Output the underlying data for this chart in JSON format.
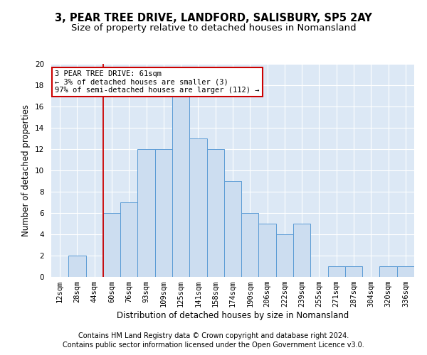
{
  "title1": "3, PEAR TREE DRIVE, LANDFORD, SALISBURY, SP5 2AY",
  "title2": "Size of property relative to detached houses in Nomansland",
  "xlabel": "Distribution of detached houses by size in Nomansland",
  "ylabel": "Number of detached properties",
  "categories": [
    "12sqm",
    "28sqm",
    "44sqm",
    "60sqm",
    "76sqm",
    "93sqm",
    "109sqm",
    "125sqm",
    "141sqm",
    "158sqm",
    "174sqm",
    "190sqm",
    "206sqm",
    "222sqm",
    "239sqm",
    "255sqm",
    "271sqm",
    "287sqm",
    "304sqm",
    "320sqm",
    "336sqm"
  ],
  "values": [
    0,
    2,
    0,
    6,
    7,
    12,
    12,
    17,
    13,
    12,
    9,
    6,
    5,
    4,
    5,
    0,
    1,
    1,
    0,
    1,
    1
  ],
  "bar_color": "#ccddf0",
  "bar_edge_color": "#5b9bd5",
  "annotation_text": "3 PEAR TREE DRIVE: 61sqm\n← 3% of detached houses are smaller (3)\n97% of semi-detached houses are larger (112) →",
  "annotation_box_color": "#ffffff",
  "annotation_box_edge_color": "#cc0000",
  "ylim": [
    0,
    20
  ],
  "yticks": [
    0,
    2,
    4,
    6,
    8,
    10,
    12,
    14,
    16,
    18,
    20
  ],
  "red_line_x": 2.5,
  "background_color": "#dce8f5",
  "grid_color": "#ffffff",
  "footer1": "Contains HM Land Registry data © Crown copyright and database right 2024.",
  "footer2": "Contains public sector information licensed under the Open Government Licence v3.0.",
  "title1_fontsize": 10.5,
  "title2_fontsize": 9.5,
  "xlabel_fontsize": 8.5,
  "ylabel_fontsize": 8.5,
  "tick_fontsize": 7.5,
  "footer_fontsize": 7.0,
  "ann_fontsize": 7.5
}
